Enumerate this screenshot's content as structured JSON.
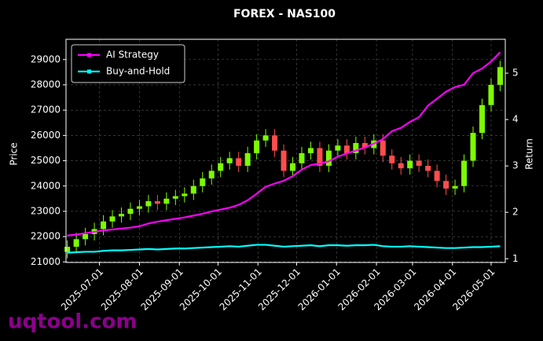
{
  "chart_data": {
    "type": "candlestick",
    "title": "FOREX - NAS100",
    "ylabel": "Price",
    "y2label": "Return",
    "watermark": "uqtool.com",
    "x": [
      "2025-06-06",
      "2025-06-13",
      "2025-06-20",
      "2025-06-27",
      "2025-07-04",
      "2025-07-11",
      "2025-07-18",
      "2025-07-25",
      "2025-08-01",
      "2025-08-08",
      "2025-08-15",
      "2025-08-22",
      "2025-08-29",
      "2025-09-05",
      "2025-09-12",
      "2025-09-19",
      "2025-09-26",
      "2025-10-03",
      "2025-10-10",
      "2025-10-17",
      "2025-10-24",
      "2025-10-31",
      "2025-11-07",
      "2025-11-14",
      "2025-11-21",
      "2025-11-28",
      "2025-12-05",
      "2025-12-12",
      "2025-12-19",
      "2025-12-26",
      "2026-01-02",
      "2026-01-09",
      "2026-01-16",
      "2026-01-23",
      "2026-01-30",
      "2026-02-06",
      "2026-02-13",
      "2026-02-20",
      "2026-02-27",
      "2026-03-06",
      "2026-03-13",
      "2026-03-20",
      "2026-03-27",
      "2026-04-03",
      "2026-04-10",
      "2026-04-17",
      "2026-04-24",
      "2026-05-01",
      "2026-05-08"
    ],
    "open": [
      21400,
      21600,
      21900,
      22100,
      22300,
      22600,
      22800,
      22900,
      23100,
      23200,
      23400,
      23300,
      23500,
      23600,
      23700,
      24000,
      24300,
      24600,
      24900,
      25100,
      24800,
      25300,
      25800,
      26000,
      25400,
      24600,
      24900,
      25300,
      25500,
      24800,
      25400,
      25600,
      25300,
      25700,
      25500,
      25800,
      25200,
      24900,
      24700,
      25000,
      24800,
      24600,
      24200,
      23900,
      24000,
      25000,
      26100,
      27200,
      28000
    ],
    "high": [
      21850,
      22150,
      22350,
      22550,
      22850,
      23050,
      23150,
      23350,
      23450,
      23650,
      23650,
      23750,
      23850,
      23950,
      24250,
      24550,
      24850,
      25150,
      25350,
      25350,
      25550,
      26050,
      26250,
      26250,
      25650,
      25150,
      25550,
      25750,
      25750,
      25650,
      25850,
      25850,
      25950,
      25950,
      26050,
      26050,
      25450,
      25150,
      25250,
      25250,
      25050,
      24850,
      24450,
      24250,
      25250,
      26350,
      27450,
      28250,
      28950
    ],
    "low": [
      21150,
      21350,
      21650,
      21850,
      22050,
      22350,
      22550,
      22650,
      22850,
      22950,
      23050,
      23050,
      23250,
      23350,
      23450,
      23750,
      24050,
      24350,
      24650,
      24550,
      24550,
      25050,
      25550,
      25150,
      24350,
      24350,
      24650,
      25050,
      24550,
      24550,
      25150,
      25050,
      25050,
      25250,
      25250,
      24950,
      24650,
      24450,
      24450,
      24550,
      24350,
      23950,
      23650,
      23650,
      23750,
      24750,
      25850,
      26950,
      27750
    ],
    "close": [
      21600,
      21900,
      22100,
      22300,
      22600,
      22800,
      22900,
      23100,
      23200,
      23400,
      23300,
      23500,
      23600,
      23700,
      24000,
      24300,
      24600,
      24900,
      25100,
      24800,
      25300,
      25800,
      26000,
      25400,
      24600,
      24900,
      25300,
      25500,
      24800,
      25400,
      25600,
      25300,
      25700,
      25500,
      25800,
      25200,
      24900,
      24700,
      25000,
      24800,
      24600,
      24200,
      23900,
      24000,
      25000,
      26100,
      27200,
      28000,
      28700
    ],
    "up_color": "#7cfc00",
    "down_color": "#ff4d4d",
    "series": [
      {
        "name": "AI Strategy",
        "color": "#ff00ff",
        "axis": "y2",
        "values": [
          1.5,
          1.52,
          1.55,
          1.58,
          1.61,
          1.63,
          1.65,
          1.67,
          1.7,
          1.76,
          1.8,
          1.83,
          1.86,
          1.89,
          1.93,
          1.97,
          2.02,
          2.06,
          2.1,
          2.16,
          2.26,
          2.4,
          2.55,
          2.62,
          2.68,
          2.78,
          2.92,
          3.02,
          3.05,
          3.1,
          3.2,
          3.27,
          3.33,
          3.4,
          3.48,
          3.58,
          3.75,
          3.82,
          3.95,
          4.05,
          4.3,
          4.45,
          4.6,
          4.7,
          4.75,
          5.0,
          5.1,
          5.25,
          5.45
        ]
      },
      {
        "name": "Buy-and-Hold",
        "color": "#00ffff",
        "axis": "y2",
        "values": [
          1.13,
          1.14,
          1.15,
          1.15,
          1.17,
          1.18,
          1.18,
          1.19,
          1.2,
          1.21,
          1.2,
          1.21,
          1.22,
          1.22,
          1.23,
          1.24,
          1.25,
          1.26,
          1.27,
          1.26,
          1.28,
          1.3,
          1.3,
          1.28,
          1.26,
          1.27,
          1.28,
          1.29,
          1.27,
          1.29,
          1.29,
          1.28,
          1.29,
          1.29,
          1.3,
          1.27,
          1.26,
          1.26,
          1.27,
          1.26,
          1.25,
          1.24,
          1.23,
          1.23,
          1.24,
          1.25,
          1.25,
          1.26,
          1.27
        ]
      }
    ],
    "xlim": [
      "2025-06-05",
      "2026-05-12"
    ],
    "xticks": [
      "2025-07-01",
      "2025-08-01",
      "2025-09-01",
      "2025-10-01",
      "2025-11-01",
      "2025-12-01",
      "2026-01-01",
      "2026-02-01",
      "2026-03-01",
      "2026-04-01",
      "2026-05-01"
    ],
    "ylim": [
      20980,
      29800
    ],
    "yticks": [
      21000,
      22000,
      23000,
      24000,
      25000,
      26000,
      27000,
      28000,
      29000
    ],
    "y2lim": [
      0.92,
      5.73
    ],
    "y2ticks": [
      1,
      2,
      3,
      4,
      5
    ],
    "grid": true,
    "legend": "upper left"
  }
}
